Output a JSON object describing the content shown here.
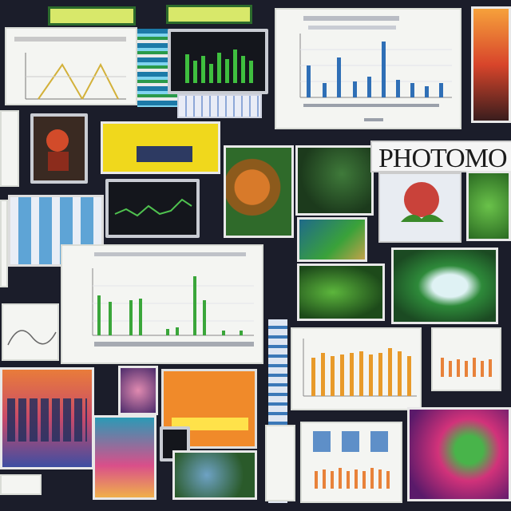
{
  "banner": {
    "text": "PHOTOMO"
  },
  "colors": {
    "background": "#1b1d2a",
    "paper": "#f4f5f2",
    "bar_blue": "#2f6fb6",
    "bar_green": "#3aa63a",
    "bar_orange": "#e89a2a",
    "screen_green": "#3fbf3f"
  },
  "tiles": [
    "top-left-paper-chart",
    "yellow-green-label",
    "dark-bar-screen",
    "blue-bar-chart",
    "orange-poster",
    "yellow-panel",
    "monitor-wave",
    "foliage-photo",
    "leaf-photo",
    "photomo-banner",
    "flower-photo",
    "green-bar-chart",
    "orange-bar-chart",
    "pink-photo"
  ]
}
